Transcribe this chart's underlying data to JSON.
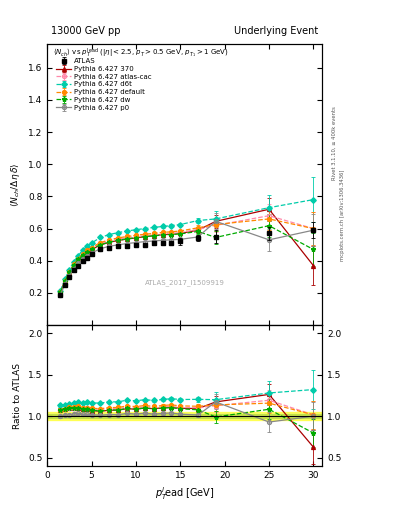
{
  "title_left": "13000 GeV pp",
  "title_right": "Underlying Event",
  "subplot_label": "ATLAS_2017_I1509919",
  "ylim_main": [
    0.0,
    1.75
  ],
  "ylim_ratio": [
    0.4,
    2.1
  ],
  "xlim": [
    0,
    31
  ],
  "yticks_main": [
    0.2,
    0.4,
    0.6,
    0.8,
    1.0,
    1.2,
    1.4,
    1.6
  ],
  "yticks_ratio": [
    0.5,
    1.0,
    1.5,
    2.0
  ],
  "atlas_x": [
    1.5,
    2.0,
    2.5,
    3.0,
    3.5,
    4.0,
    4.5,
    5.0,
    6.0,
    7.0,
    8.0,
    9.0,
    10.0,
    11.0,
    12.0,
    13.0,
    14.0,
    15.0,
    17.0,
    19.0,
    25.0,
    30.0
  ],
  "atlas_y": [
    0.19,
    0.25,
    0.3,
    0.34,
    0.37,
    0.4,
    0.42,
    0.44,
    0.47,
    0.48,
    0.49,
    0.49,
    0.5,
    0.5,
    0.51,
    0.51,
    0.51,
    0.52,
    0.54,
    0.55,
    0.57,
    0.59
  ],
  "atlas_yerr": [
    0.01,
    0.01,
    0.01,
    0.01,
    0.01,
    0.01,
    0.01,
    0.01,
    0.01,
    0.01,
    0.01,
    0.01,
    0.01,
    0.01,
    0.01,
    0.01,
    0.01,
    0.02,
    0.02,
    0.04,
    0.04,
    0.05
  ],
  "p370_x": [
    1.5,
    2.0,
    2.5,
    3.0,
    3.5,
    4.0,
    4.5,
    5.0,
    6.0,
    7.0,
    8.0,
    9.0,
    10.0,
    11.0,
    12.0,
    13.0,
    14.0,
    15.0,
    17.0,
    19.0,
    25.0,
    30.0
  ],
  "p370_y": [
    0.205,
    0.272,
    0.328,
    0.374,
    0.408,
    0.435,
    0.455,
    0.47,
    0.498,
    0.515,
    0.526,
    0.535,
    0.542,
    0.55,
    0.556,
    0.562,
    0.565,
    0.57,
    0.59,
    0.645,
    0.72,
    0.37
  ],
  "p370_yerr": [
    0.003,
    0.003,
    0.003,
    0.003,
    0.003,
    0.003,
    0.003,
    0.003,
    0.004,
    0.004,
    0.004,
    0.005,
    0.005,
    0.006,
    0.006,
    0.007,
    0.007,
    0.008,
    0.015,
    0.04,
    0.07,
    0.12
  ],
  "patlas_x": [
    1.5,
    2.0,
    2.5,
    3.0,
    3.5,
    4.0,
    4.5,
    5.0,
    6.0,
    7.0,
    8.0,
    9.0,
    10.0,
    11.0,
    12.0,
    13.0,
    14.0,
    15.0,
    17.0,
    19.0,
    25.0,
    30.0
  ],
  "patlas_y": [
    0.205,
    0.272,
    0.33,
    0.375,
    0.412,
    0.44,
    0.462,
    0.48,
    0.508,
    0.524,
    0.535,
    0.543,
    0.55,
    0.556,
    0.561,
    0.567,
    0.57,
    0.575,
    0.595,
    0.62,
    0.68,
    0.6
  ],
  "patlas_yerr": [
    0.003,
    0.003,
    0.003,
    0.003,
    0.003,
    0.003,
    0.003,
    0.003,
    0.004,
    0.004,
    0.004,
    0.005,
    0.005,
    0.006,
    0.006,
    0.007,
    0.007,
    0.008,
    0.015,
    0.04,
    0.07,
    0.1
  ],
  "pd6t_x": [
    1.5,
    2.0,
    2.5,
    3.0,
    3.5,
    4.0,
    4.5,
    5.0,
    6.0,
    7.0,
    8.0,
    9.0,
    10.0,
    11.0,
    12.0,
    13.0,
    14.0,
    15.0,
    17.0,
    19.0,
    25.0,
    30.0
  ],
  "pd6t_y": [
    0.215,
    0.285,
    0.345,
    0.395,
    0.432,
    0.465,
    0.49,
    0.51,
    0.545,
    0.563,
    0.575,
    0.585,
    0.593,
    0.6,
    0.607,
    0.613,
    0.618,
    0.625,
    0.65,
    0.66,
    0.73,
    0.78
  ],
  "pd6t_yerr": [
    0.003,
    0.003,
    0.003,
    0.003,
    0.003,
    0.003,
    0.003,
    0.004,
    0.004,
    0.004,
    0.005,
    0.005,
    0.006,
    0.006,
    0.007,
    0.007,
    0.008,
    0.009,
    0.018,
    0.05,
    0.08,
    0.14
  ],
  "pdefault_x": [
    1.5,
    2.0,
    2.5,
    3.0,
    3.5,
    4.0,
    4.5,
    5.0,
    6.0,
    7.0,
    8.0,
    9.0,
    10.0,
    11.0,
    12.0,
    13.0,
    14.0,
    15.0,
    17.0,
    19.0,
    25.0,
    30.0
  ],
  "pdefault_y": [
    0.205,
    0.273,
    0.332,
    0.378,
    0.414,
    0.442,
    0.464,
    0.482,
    0.513,
    0.53,
    0.542,
    0.551,
    0.558,
    0.565,
    0.57,
    0.576,
    0.58,
    0.585,
    0.605,
    0.625,
    0.66,
    0.6
  ],
  "pdefault_yerr": [
    0.003,
    0.003,
    0.003,
    0.003,
    0.003,
    0.003,
    0.003,
    0.003,
    0.004,
    0.004,
    0.004,
    0.005,
    0.005,
    0.006,
    0.006,
    0.007,
    0.007,
    0.008,
    0.015,
    0.04,
    0.07,
    0.1
  ],
  "pdw_x": [
    1.5,
    2.0,
    2.5,
    3.0,
    3.5,
    4.0,
    4.5,
    5.0,
    6.0,
    7.0,
    8.0,
    9.0,
    10.0,
    11.0,
    12.0,
    13.0,
    14.0,
    15.0,
    17.0,
    19.0,
    25.0,
    30.0
  ],
  "pdw_y": [
    0.205,
    0.272,
    0.328,
    0.374,
    0.408,
    0.435,
    0.456,
    0.472,
    0.5,
    0.516,
    0.527,
    0.536,
    0.543,
    0.55,
    0.555,
    0.56,
    0.563,
    0.567,
    0.582,
    0.545,
    0.618,
    0.47
  ],
  "pdw_yerr": [
    0.003,
    0.003,
    0.003,
    0.003,
    0.003,
    0.003,
    0.003,
    0.003,
    0.004,
    0.004,
    0.004,
    0.005,
    0.005,
    0.006,
    0.006,
    0.007,
    0.007,
    0.008,
    0.015,
    0.04,
    0.07,
    0.1
  ],
  "pp0_x": [
    1.5,
    2.0,
    2.5,
    3.0,
    3.5,
    4.0,
    4.5,
    5.0,
    6.0,
    7.0,
    8.0,
    9.0,
    10.0,
    11.0,
    12.0,
    13.0,
    14.0,
    15.0,
    17.0,
    19.0,
    25.0,
    30.0
  ],
  "pp0_y": [
    0.19,
    0.253,
    0.305,
    0.35,
    0.383,
    0.41,
    0.43,
    0.448,
    0.475,
    0.49,
    0.499,
    0.507,
    0.513,
    0.519,
    0.523,
    0.527,
    0.53,
    0.533,
    0.548,
    0.645,
    0.53,
    0.59
  ],
  "pp0_yerr": [
    0.003,
    0.003,
    0.003,
    0.003,
    0.003,
    0.003,
    0.003,
    0.003,
    0.004,
    0.004,
    0.004,
    0.005,
    0.005,
    0.006,
    0.006,
    0.007,
    0.007,
    0.008,
    0.015,
    0.05,
    0.07,
    0.1
  ],
  "color_370": "#aa0000",
  "color_atlas_cac": "#ff88aa",
  "color_d6t": "#00ccaa",
  "color_default": "#ff8800",
  "color_dw": "#00aa00",
  "color_p0": "#888888"
}
